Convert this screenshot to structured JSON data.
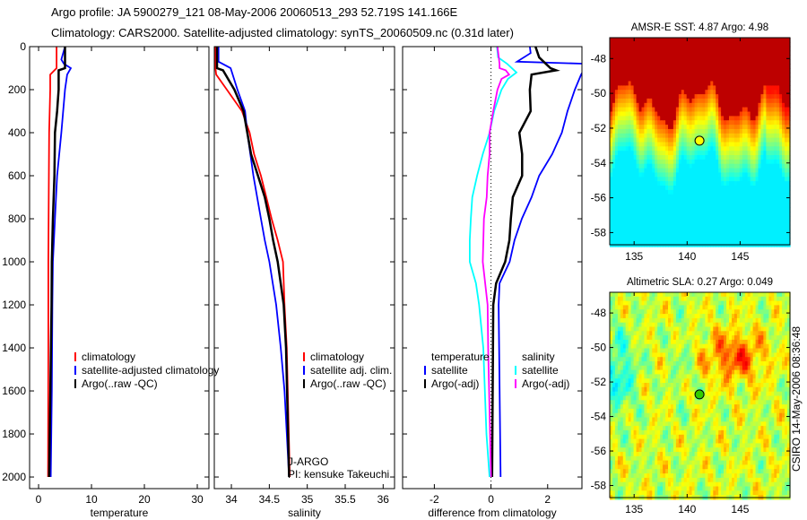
{
  "figure": {
    "title_line1": "Argo profile: JA 5900279_121 08-May-2006 20060513_293 52.719S 141.166E",
    "title_line2": "Climatology: CARS2000. Satellite-adjusted climatology: synTS_20060509.nc (0.31d later)",
    "timestamp": "CSIRO 14-May-2006 08:36:48",
    "pi_line1": "J-ARGO",
    "pi_line2": "PI: kensuke Takeuchi"
  },
  "colors": {
    "red": "#ff0000",
    "blue": "#0000ff",
    "black": "#000000",
    "cyan": "#00ffff",
    "magenta": "#ff00ff"
  },
  "chart_data": [
    {
      "type": "line",
      "xlabel": "temperature",
      "xlim": [
        -1.7,
        32.2
      ],
      "xticks": [
        0,
        10,
        20,
        30
      ],
      "ylim": [
        2054,
        0
      ],
      "yticks": [
        0,
        200,
        400,
        600,
        800,
        1000,
        1200,
        1400,
        1600,
        1800,
        2000
      ],
      "legend": [
        "climatology",
        "satellite-adjusted climatology",
        "Argo(..raw -QC)"
      ],
      "series": [
        {
          "name": "climatology",
          "color": "#ff0000",
          "depth": [
            0,
            100,
            130,
            200,
            400,
            1000,
            1400,
            2000
          ],
          "values": [
            3.4,
            3.4,
            2.2,
            2.2,
            2.0,
            1.85,
            1.85,
            1.8
          ]
        },
        {
          "name": "satellite-adjusted climatology",
          "color": "#0000ff",
          "depth": [
            0,
            60,
            80,
            100,
            130,
            200,
            400,
            600,
            800,
            1000,
            1200,
            1600,
            2000
          ],
          "values": [
            5.0,
            4.3,
            4.8,
            6.1,
            5.4,
            5.0,
            4.3,
            3.5,
            3.1,
            2.7,
            2.6,
            2.5,
            2.3
          ]
        },
        {
          "name": "Argo(..raw -QC)",
          "color": "#000000",
          "depth": [
            0,
            100,
            110,
            200,
            300,
            400,
            600,
            800,
            1000,
            1200,
            2000
          ],
          "values": [
            5.0,
            5.0,
            3.8,
            3.8,
            3.5,
            3.1,
            3.0,
            2.7,
            2.5,
            2.45,
            2.0
          ]
        }
      ]
    },
    {
      "type": "line",
      "xlabel": "salinity",
      "xlim": [
        33.775,
        36.15
      ],
      "xticks": [
        34,
        34.5,
        35,
        35.5,
        36
      ],
      "ylim": [
        2054,
        0
      ],
      "yticks": [
        0,
        200,
        400,
        600,
        800,
        1000,
        1200,
        1400,
        1600,
        1800,
        2000
      ],
      "legend": [
        "climatology",
        "satellite adj. clim.",
        "Argo(..raw -QC)"
      ],
      "series": [
        {
          "name": "climatology",
          "color": "#ff0000",
          "depth": [
            0,
            100,
            130,
            200,
            300,
            400,
            500,
            600,
            700,
            800,
            900,
            1000,
            1200,
            1400,
            2000
          ],
          "values": [
            33.79,
            33.79,
            33.8,
            33.94,
            34.14,
            34.24,
            34.3,
            34.39,
            34.46,
            34.53,
            34.61,
            34.68,
            34.7,
            34.73,
            34.77
          ]
        },
        {
          "name": "satellite adj. clim.",
          "color": "#0000ff",
          "depth": [
            0,
            70,
            100,
            200,
            300,
            400,
            500,
            600,
            700,
            800,
            900,
            1000,
            1200,
            1400,
            1600,
            2000
          ],
          "values": [
            33.83,
            33.83,
            33.99,
            34.08,
            34.18,
            34.21,
            34.25,
            34.29,
            34.34,
            34.39,
            34.44,
            34.5,
            34.59,
            34.65,
            34.7,
            34.76
          ]
        },
        {
          "name": "Argo(..raw -QC)",
          "color": "#000000",
          "depth": [
            0,
            100,
            110,
            200,
            300,
            400,
            500,
            600,
            700,
            800,
            900,
            1000,
            1200,
            1400,
            2000
          ],
          "values": [
            33.81,
            33.81,
            33.89,
            34.04,
            34.16,
            34.21,
            34.26,
            34.35,
            34.44,
            34.5,
            34.55,
            34.61,
            34.69,
            34.72,
            34.76
          ]
        }
      ]
    },
    {
      "type": "line",
      "xlabel": "difference from climatology",
      "xlim": [
        -3.12,
        3.21
      ],
      "xticks": [
        -2,
        0,
        2
      ],
      "ylim": [
        2054,
        0
      ],
      "yticks": [
        0,
        200,
        400,
        600,
        800,
        1000,
        1200,
        1400,
        1600,
        1800,
        2000
      ],
      "legend_temperature_header": "temperature",
      "legend_salinity_header": "salinity",
      "legend": [
        "satellite",
        "Argo(-adj)",
        "satellite",
        "Argo(-adj)"
      ],
      "series": [
        {
          "name": "temperature satellite",
          "color": "#0000ff",
          "depth": [
            0,
            30,
            70,
            80,
            130,
            200,
            300,
            400,
            500,
            600,
            700,
            800,
            900,
            1000,
            1100,
            1200,
            2000
          ],
          "values": [
            1.37,
            1.4,
            0.92,
            3.4,
            3.18,
            2.96,
            2.7,
            2.5,
            2.16,
            1.7,
            1.43,
            1.09,
            0.83,
            0.66,
            0.3,
            0.27,
            0.34
          ]
        },
        {
          "name": "temperature Argo(-adj)",
          "color": "#000000",
          "depth": [
            0,
            50,
            100,
            110,
            130,
            200,
            300,
            400,
            500,
            600,
            700,
            800,
            900,
            1000,
            1100,
            1200,
            2000
          ],
          "values": [
            1.57,
            1.7,
            2.1,
            2.3,
            1.43,
            1.37,
            1.4,
            1.0,
            1.1,
            1.1,
            0.77,
            0.7,
            0.65,
            0.5,
            0.18,
            0.08,
            0.04
          ]
        },
        {
          "name": "salinity satellite",
          "color": "#00ffff",
          "depth": [
            0,
            50,
            80,
            120,
            150,
            200,
            300,
            400,
            500,
            600,
            700,
            800,
            900,
            1000,
            1100,
            1200,
            1400,
            1800,
            2000
          ],
          "values": [
            0.21,
            0.25,
            0.57,
            0.9,
            0.6,
            0.37,
            0.11,
            -0.05,
            -0.29,
            -0.49,
            -0.66,
            -0.71,
            -0.75,
            -0.75,
            -0.53,
            -0.42,
            -0.27,
            -0.16,
            -0.05
          ]
        },
        {
          "name": "salinity Argo(-adj)",
          "color": "#ff00ff",
          "depth": [
            0,
            80,
            100,
            110,
            130,
            150,
            200,
            300,
            400,
            500,
            600,
            700,
            800,
            1000,
            1200,
            1400,
            2000
          ],
          "values": [
            0.23,
            0.3,
            0.3,
            0.52,
            0.64,
            0.37,
            0.23,
            0.08,
            -0.05,
            -0.05,
            -0.12,
            -0.15,
            -0.25,
            -0.29,
            -0.12,
            -0.1,
            0.0
          ]
        }
      ]
    },
    {
      "type": "heatmap",
      "title": "AMSR-E SST: 4.87 Argo: 4.98",
      "xlim": [
        132.7,
        149.7
      ],
      "ylim": [
        -58.7,
        -46.8
      ],
      "xticks": [
        135,
        140,
        145
      ],
      "yticks": [
        -48,
        -50,
        -52,
        -54,
        -56,
        -58
      ],
      "marker": {
        "lon": 141.166,
        "lat": -52.719,
        "color": "#ffff00"
      }
    },
    {
      "type": "heatmap",
      "title": "Altimetric SLA: 0.27 Argo: 0.049",
      "xlim": [
        132.7,
        149.7
      ],
      "ylim": [
        -58.7,
        -46.8
      ],
      "xticks": [
        135,
        140,
        145
      ],
      "yticks": [
        -48,
        -50,
        -52,
        -54,
        -56,
        -58
      ],
      "marker": {
        "lon": 141.166,
        "lat": -52.719,
        "color": "#33cc00"
      }
    }
  ]
}
